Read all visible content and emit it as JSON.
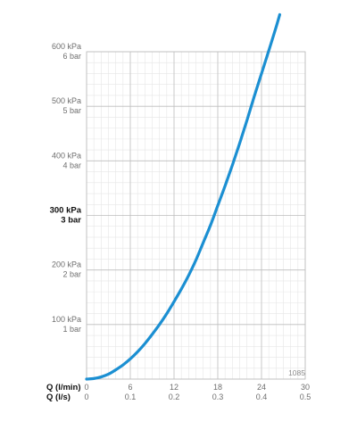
{
  "chart_data": {
    "type": "line",
    "code_label": "1085",
    "x_axes": {
      "primary": {
        "label": "Q (l/min)",
        "ticks": [
          "0",
          "6",
          "12",
          "18",
          "24",
          "30"
        ],
        "range": [
          0,
          30
        ]
      },
      "secondary": {
        "label": "Q (l/s)",
        "ticks": [
          "0",
          "0.1",
          "0.2",
          "0.3",
          "0.4",
          "0.5"
        ],
        "range": [
          0,
          0.5
        ]
      }
    },
    "y_axis": {
      "unit": "kPa",
      "range": [
        0,
        600
      ],
      "ticks": [
        {
          "value": 100,
          "kpa": "100 kPa",
          "bar": "1 bar",
          "bold": false
        },
        {
          "value": 200,
          "kpa": "200 kPa",
          "bar": "2 bar",
          "bold": false
        },
        {
          "value": 300,
          "kpa": "300 kPa",
          "bar": "3 bar",
          "bold": true
        },
        {
          "value": 400,
          "kpa": "400 kPa",
          "bar": "4 bar",
          "bold": false
        },
        {
          "value": 500,
          "kpa": "500 kPa",
          "bar": "5 bar",
          "bold": false
        },
        {
          "value": 600,
          "kpa": "600 kPa",
          "bar": "6 bar",
          "bold": false
        }
      ]
    },
    "grid": {
      "major": true,
      "minor": true
    },
    "series": [
      {
        "color": "#1b8fd2",
        "x": [
          0,
          1,
          2,
          3,
          4,
          5,
          6,
          7,
          8,
          9,
          10,
          11,
          12,
          13,
          14,
          15,
          16,
          17,
          18,
          19,
          20,
          21,
          22,
          23,
          24,
          25,
          26,
          26.5
        ],
        "y": [
          0,
          1,
          4,
          9,
          17,
          26,
          37,
          50,
          65,
          82,
          100,
          120,
          142,
          165,
          190,
          218,
          250,
          282,
          318,
          354,
          392,
          432,
          474,
          518,
          560,
          602,
          645,
          668
        ]
      }
    ]
  }
}
